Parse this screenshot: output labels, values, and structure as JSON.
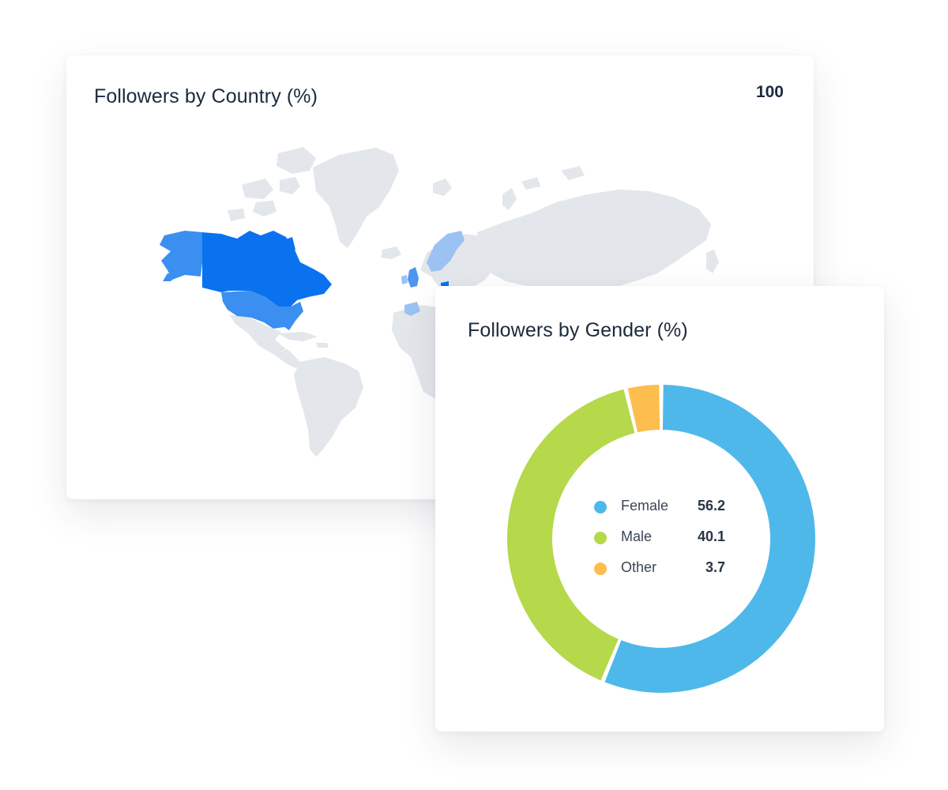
{
  "cards": {
    "map": {
      "title": "Followers by Country (%)",
      "max_value": "100",
      "land_color": "#e3e6ea"
    },
    "gender": {
      "title": "Followers by Gender (%)"
    }
  },
  "chart_data": [
    {
      "type": "choropleth-map",
      "title": "Followers by Country (%)",
      "scale_max": 100,
      "color_scale": [
        "#c9ddf7",
        "#3a8ff0",
        "#0a72ee"
      ],
      "highlighted_regions": [
        {
          "region": "Canada",
          "level": "high",
          "color": "#0a72ee"
        },
        {
          "region": "United States",
          "level": "medium",
          "color": "#3a8ff0"
        },
        {
          "region": "Alaska",
          "level": "medium",
          "color": "#3a8ff0"
        },
        {
          "region": "United Kingdom",
          "level": "medium",
          "color": "#4d95ee"
        },
        {
          "region": "Ireland",
          "level": "low",
          "color": "#9cc1f3"
        },
        {
          "region": "Norway",
          "level": "low",
          "color": "#9cc1f3"
        },
        {
          "region": "Sweden",
          "level": "low",
          "color": "#9cc1f3"
        },
        {
          "region": "Spain",
          "level": "low",
          "color": "#9cc1f3"
        }
      ]
    },
    {
      "type": "pie",
      "title": "Followers by Gender (%)",
      "categories": [
        "Female",
        "Male",
        "Other"
      ],
      "values": [
        56.2,
        40.1,
        3.7
      ],
      "value_labels": [
        "56.2",
        "40.1",
        "3.7"
      ],
      "colors": [
        "#4fb8ea",
        "#b5d94a",
        "#fdbd4f"
      ],
      "donut": true,
      "legend_position": "center"
    }
  ]
}
